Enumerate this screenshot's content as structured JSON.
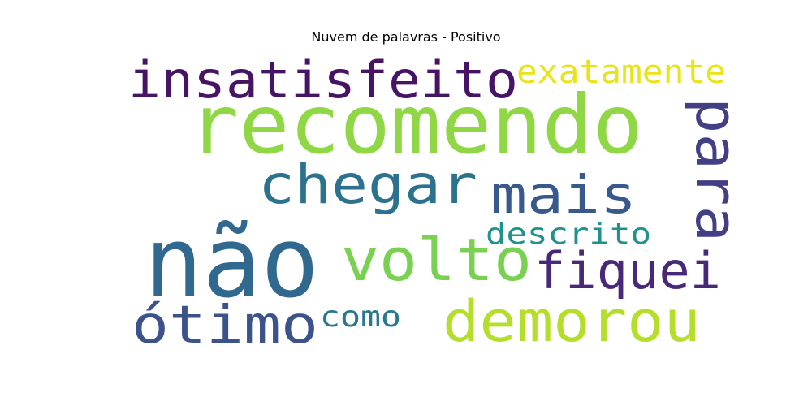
{
  "chart_data": {
    "type": "wordcloud",
    "title": "Nuvem de palavras - Positivo",
    "words": [
      {
        "text": "não",
        "color": "#31688e"
      },
      {
        "text": "recomendo",
        "color": "#8fd744"
      },
      {
        "text": "insatisfeito",
        "color": "#471365"
      },
      {
        "text": "volto",
        "color": "#7ad151"
      },
      {
        "text": "demorou",
        "color": "#b5de2b"
      },
      {
        "text": "chegar",
        "color": "#2c728e"
      },
      {
        "text": "mais",
        "color": "#38598c"
      },
      {
        "text": "para",
        "color": "#423f85"
      },
      {
        "text": "fiquei",
        "color": "#482878"
      },
      {
        "text": "ótimo",
        "color": "#3b528b"
      },
      {
        "text": "exatamente",
        "color": "#e7e419"
      },
      {
        "text": "descrito",
        "color": "#21918c"
      },
      {
        "text": "como",
        "color": "#2a788e"
      }
    ]
  }
}
